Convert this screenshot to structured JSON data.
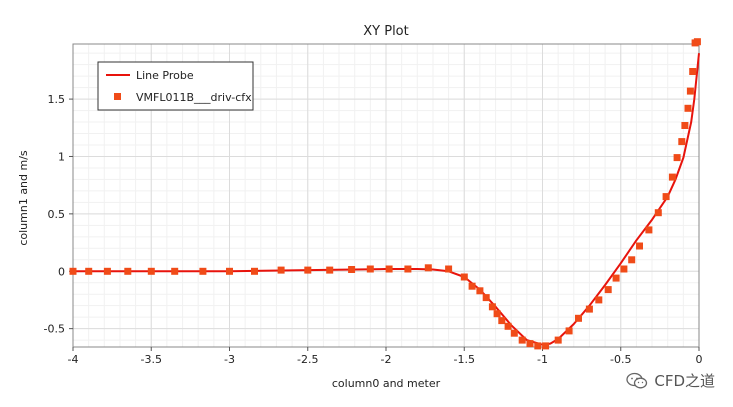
{
  "chart_data": {
    "type": "line",
    "title": "XY Plot",
    "xlabel": "column0 and meter",
    "ylabel": "column1 and m/s",
    "xlim": [
      -4,
      0
    ],
    "ylim": [
      -0.66,
      1.98
    ],
    "xticks": [
      -4,
      -3.5,
      -3,
      -2.5,
      -2,
      -1.5,
      -1,
      -0.5,
      0
    ],
    "xtick_labels": [
      "-4",
      "-3.5",
      "-3",
      "-2.5",
      "-2",
      "-1.5",
      "-1",
      "-0.5",
      "0"
    ],
    "yticks": [
      -0.5,
      0,
      0.5,
      1,
      1.5
    ],
    "ytick_labels": [
      "-0.5",
      "0",
      "0.5",
      "1",
      "1.5"
    ],
    "grid": true,
    "legend_position": "top-left",
    "series": [
      {
        "name": "Line Probe",
        "style": "line",
        "color": "#e8130c",
        "x": [
          -4.0,
          -3.5,
          -3.0,
          -2.5,
          -2.2,
          -2.0,
          -1.8,
          -1.7,
          -1.6,
          -1.5,
          -1.4,
          -1.3,
          -1.2,
          -1.1,
          -1.0,
          -0.95,
          -0.9,
          -0.8,
          -0.7,
          -0.6,
          -0.5,
          -0.4,
          -0.3,
          -0.2,
          -0.15,
          -0.1,
          -0.05,
          -0.03,
          0.0
        ],
        "y": [
          0.0,
          0.0,
          0.0,
          0.01,
          0.015,
          0.02,
          0.02,
          0.015,
          0.0,
          -0.05,
          -0.16,
          -0.31,
          -0.47,
          -0.6,
          -0.64,
          -0.63,
          -0.59,
          -0.46,
          -0.3,
          -0.12,
          0.07,
          0.27,
          0.45,
          0.65,
          0.8,
          0.99,
          1.3,
          1.5,
          1.9
        ]
      },
      {
        "name": "VMFL011B___driv-cfx",
        "style": "markers",
        "color": "#f04b18",
        "x": [
          -4.0,
          -3.9,
          -3.78,
          -3.65,
          -3.5,
          -3.35,
          -3.17,
          -3.0,
          -2.84,
          -2.67,
          -2.5,
          -2.36,
          -2.22,
          -2.1,
          -1.98,
          -1.86,
          -1.73,
          -1.6,
          -1.5,
          -1.45,
          -1.4,
          -1.36,
          -1.32,
          -1.29,
          -1.26,
          -1.22,
          -1.18,
          -1.13,
          -1.08,
          -1.03,
          -0.98,
          -0.9,
          -0.83,
          -0.77,
          -0.7,
          -0.64,
          -0.58,
          -0.53,
          -0.48,
          -0.43,
          -0.38,
          -0.32,
          -0.26,
          -0.21,
          -0.17,
          -0.14,
          -0.11,
          -0.09,
          -0.07,
          -0.055,
          -0.04,
          -0.025,
          -0.01
        ],
        "y": [
          0.0,
          0.0,
          0.0,
          0.0,
          0.0,
          0.0,
          0.0,
          0.0,
          0.0,
          0.01,
          0.01,
          0.01,
          0.015,
          0.02,
          0.02,
          0.02,
          0.03,
          0.02,
          -0.05,
          -0.13,
          -0.17,
          -0.23,
          -0.31,
          -0.37,
          -0.43,
          -0.48,
          -0.54,
          -0.6,
          -0.63,
          -0.65,
          -0.65,
          -0.6,
          -0.52,
          -0.41,
          -0.33,
          -0.25,
          -0.16,
          -0.06,
          0.02,
          0.1,
          0.22,
          0.36,
          0.51,
          0.65,
          0.82,
          0.99,
          1.13,
          1.27,
          1.42,
          1.57,
          1.74,
          1.99,
          2.0
        ]
      }
    ]
  },
  "watermark": {
    "text": "CFD之道",
    "icon": "wechat-icon"
  }
}
